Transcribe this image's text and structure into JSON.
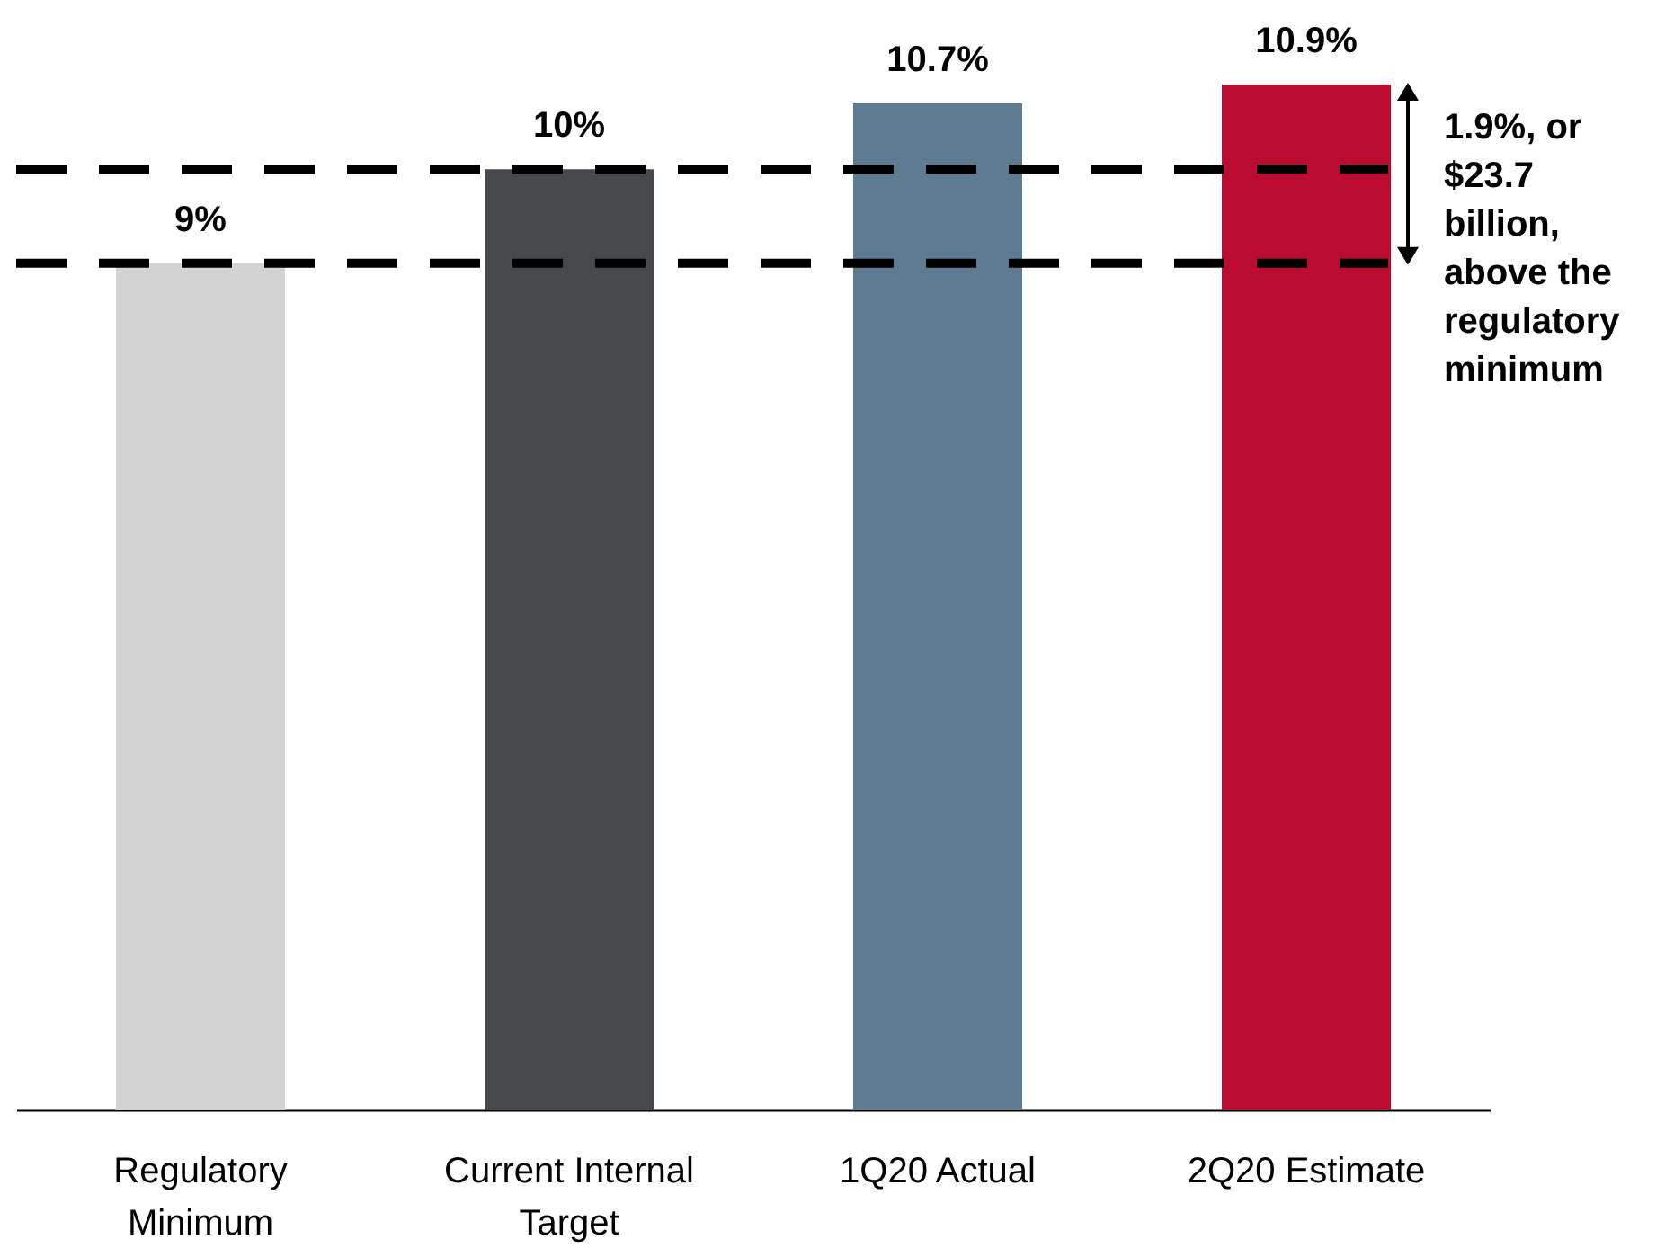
{
  "chart_data": {
    "type": "bar",
    "categories": [
      "Regulatory Minimum",
      "Current Internal Target",
      "1Q20 Actual",
      "2Q20 Estimate"
    ],
    "values": [
      9,
      10,
      10.7,
      10.9
    ],
    "colors": [
      "#d3d3d3",
      "#46484c",
      "#5d7b91",
      "#ba0c2f"
    ],
    "value_labels": [
      "9%",
      "10%",
      "10.7%",
      "10.9%"
    ],
    "ref_lines": [
      {
        "axis": "y",
        "value": 9,
        "line_style": "dashed"
      },
      {
        "axis": "y",
        "value": 10,
        "line_style": "dashed"
      }
    ],
    "annotations": [
      "1.9%, or $23.7 billion, above the regulatory minimum"
    ],
    "grid": false
  }
}
